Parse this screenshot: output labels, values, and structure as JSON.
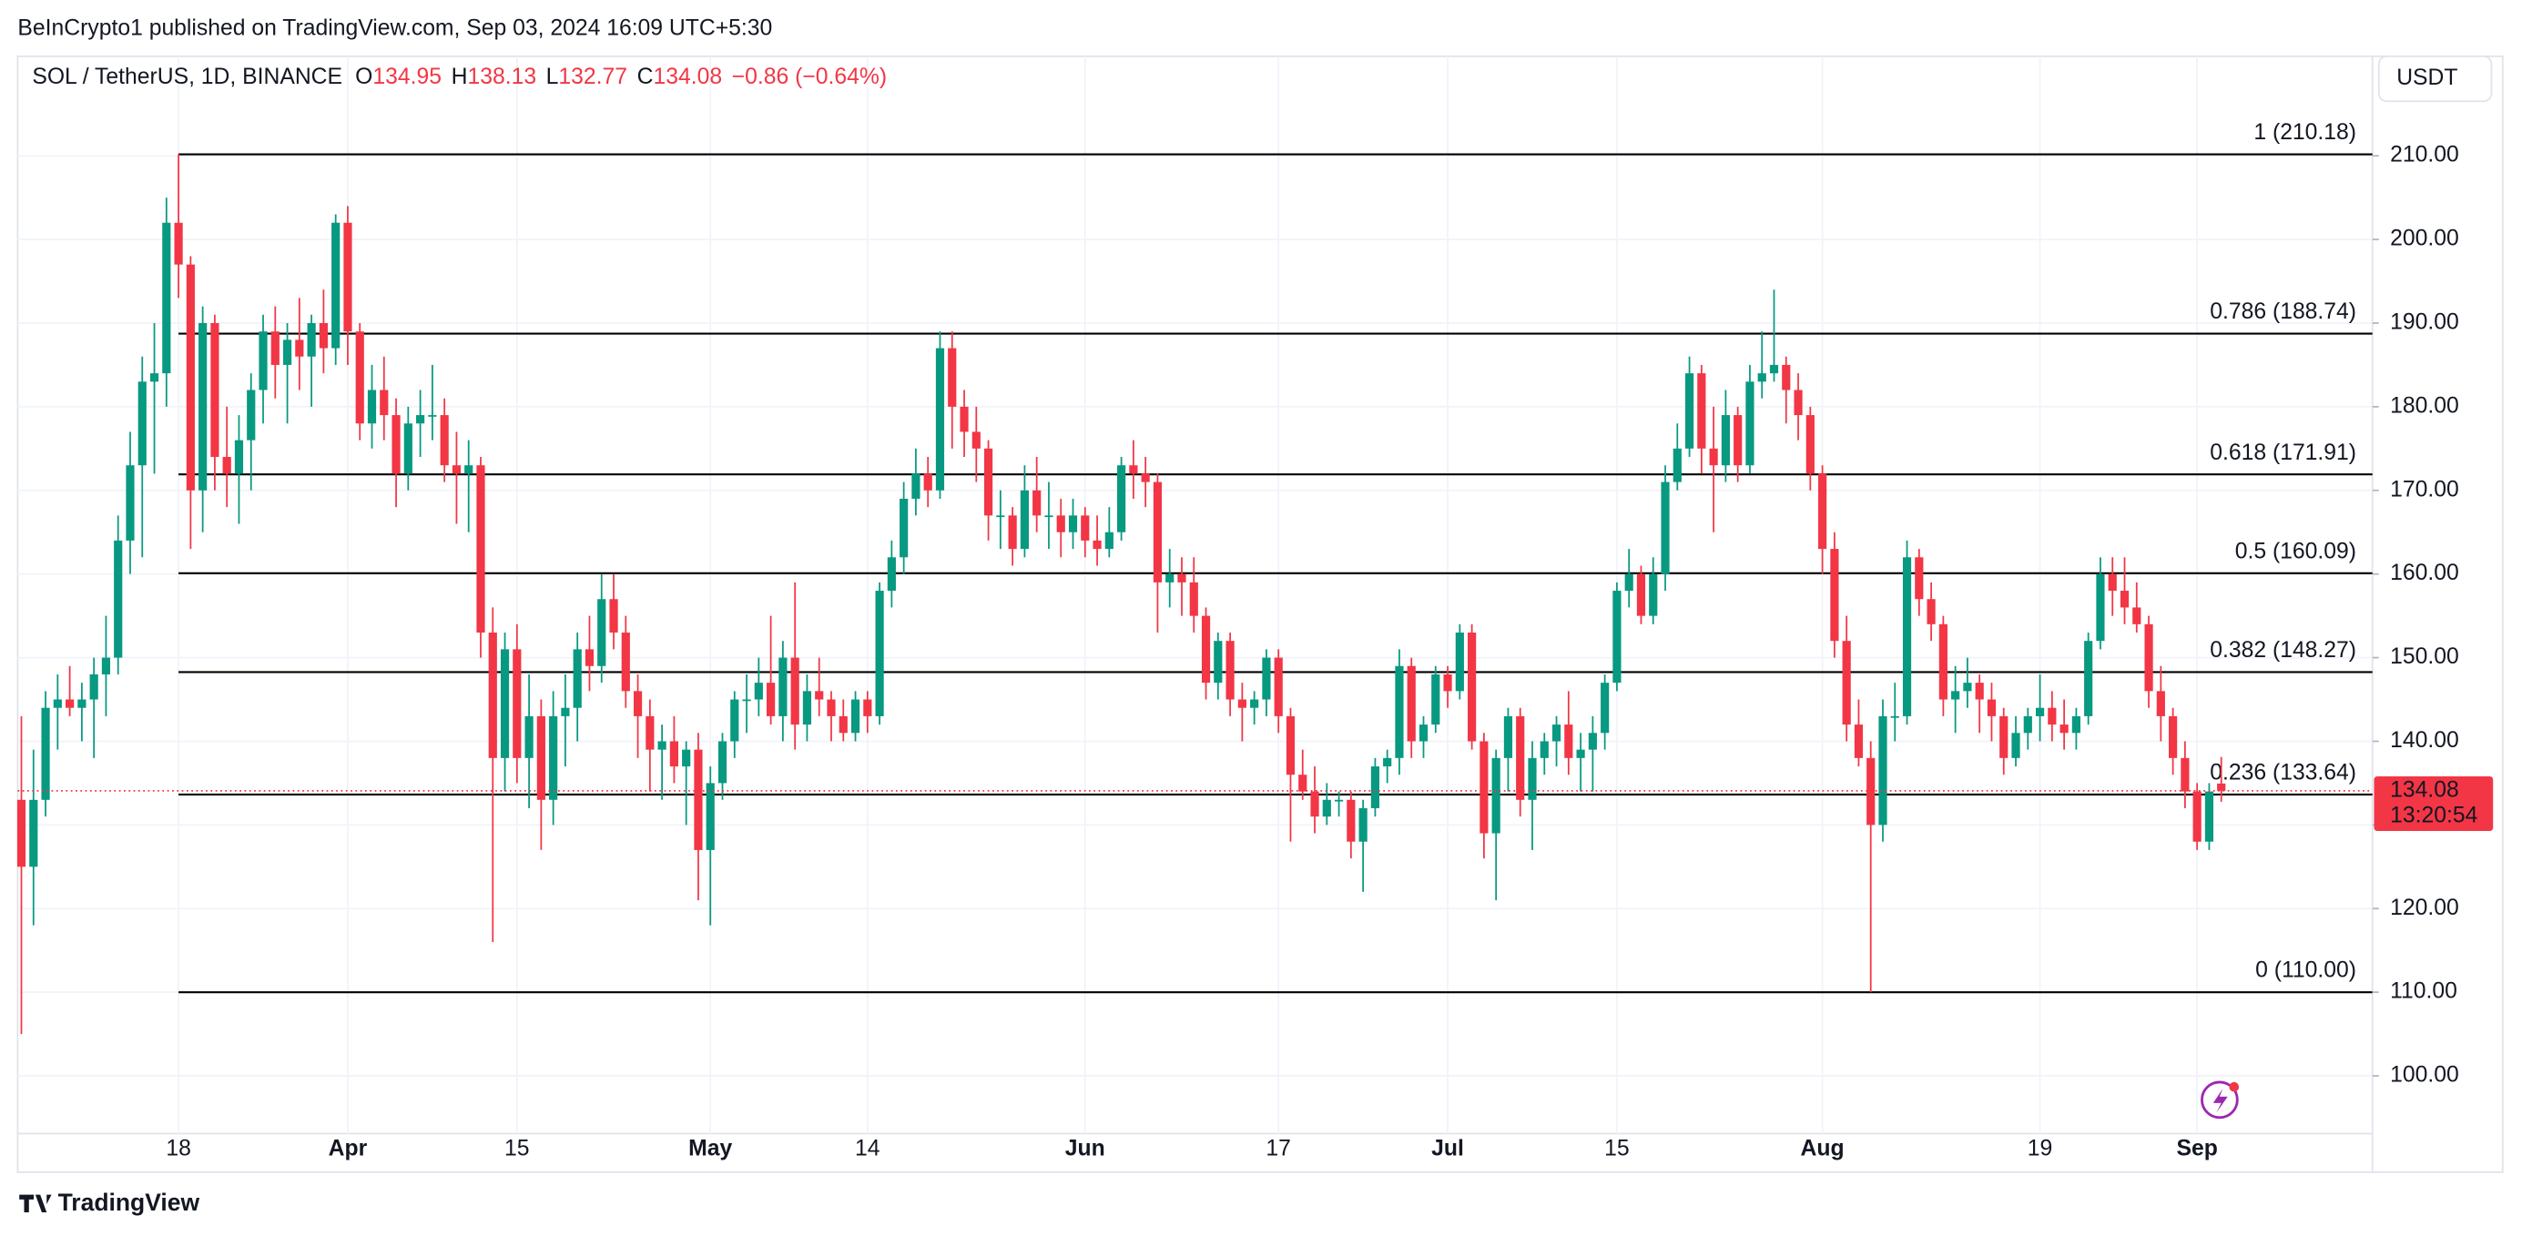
{
  "chart_data": {
    "type": "candlestick",
    "header": "BeInCrypto1 published on TradingView.com, Sep 03, 2024 16:09 UTC+5:30",
    "symbol": "SOL / TetherUS, 1D, BINANCE",
    "ohlc_labels": [
      "O",
      "H",
      "L",
      "C"
    ],
    "change": "−0.86 (−0.64%)",
    "currency": "USDT",
    "countdown": "13:20:54",
    "brand": "TradingView",
    "up_color": "#089981",
    "down_color": "#f23645",
    "fib_color": "#000000",
    "grid": true,
    "ylim": [
      93.1,
      221.9
    ],
    "yticks": [
      {
        "value": 100,
        "label": "100.00"
      },
      {
        "value": 110,
        "label": "110.00"
      },
      {
        "value": 120,
        "label": "120.00"
      },
      {
        "value": 130,
        "label": "130.00"
      },
      {
        "value": 140,
        "label": "140.00"
      },
      {
        "value": 150,
        "label": "150.00"
      },
      {
        "value": 160,
        "label": "160.00"
      },
      {
        "value": 170,
        "label": "170.00"
      },
      {
        "value": 180,
        "label": "180.00"
      },
      {
        "value": 190,
        "label": "190.00"
      },
      {
        "value": 200,
        "label": "200.00"
      },
      {
        "value": 210,
        "label": "210.00"
      }
    ],
    "fib_levels": [
      {
        "value": 210.18,
        "label": "1 (210.18)"
      },
      {
        "value": 188.74,
        "label": "0.786 (188.74)"
      },
      {
        "value": 171.91,
        "label": "0.618 (171.91)"
      },
      {
        "value": 160.09,
        "label": "0.5 (160.09)"
      },
      {
        "value": 148.27,
        "label": "0.382 (148.27)"
      },
      {
        "value": 133.64,
        "label": "0.236 (133.64)"
      },
      {
        "value": 110.0,
        "label": "0 (110.00)"
      }
    ],
    "categories": [
      null,
      null,
      null,
      null,
      null,
      null,
      null,
      null,
      null,
      null,
      null,
      null,
      null,
      "18",
      null,
      null,
      null,
      null,
      null,
      null,
      null,
      null,
      null,
      null,
      null,
      null,
      null,
      "Apr",
      null,
      null,
      null,
      null,
      null,
      null,
      null,
      null,
      null,
      null,
      null,
      null,
      null,
      "15",
      null,
      null,
      null,
      null,
      null,
      null,
      null,
      null,
      null,
      null,
      null,
      null,
      null,
      null,
      null,
      "May",
      null,
      null,
      null,
      null,
      null,
      null,
      null,
      null,
      null,
      null,
      null,
      null,
      "14",
      null,
      null,
      null,
      null,
      null,
      null,
      null,
      null,
      null,
      null,
      null,
      null,
      null,
      null,
      null,
      null,
      null,
      "Jun",
      null,
      null,
      null,
      null,
      null,
      null,
      null,
      null,
      null,
      null,
      null,
      null,
      null,
      null,
      null,
      "17",
      null,
      null,
      null,
      null,
      null,
      null,
      null,
      null,
      null,
      null,
      null,
      null,
      null,
      "Jul",
      null,
      null,
      null,
      null,
      null,
      null,
      null,
      null,
      null,
      null,
      null,
      null,
      null,
      "15",
      null,
      null,
      null,
      null,
      null,
      null,
      null,
      null,
      null,
      null,
      null,
      null,
      null,
      null,
      null,
      null,
      "Aug",
      null,
      null,
      null,
      null,
      null,
      null,
      null,
      null,
      null,
      null,
      null,
      null,
      null,
      null,
      null,
      null,
      null,
      "19",
      null,
      null,
      null,
      null,
      null,
      null,
      null,
      null,
      null,
      null,
      null,
      null,
      "Sep",
      null,
      null
    ],
    "candles": [
      [
        133,
        143,
        105,
        125
      ],
      [
        125,
        139,
        118,
        133
      ],
      [
        133,
        146,
        131,
        144
      ],
      [
        144,
        148,
        139,
        145
      ],
      [
        145,
        149,
        143,
        144
      ],
      [
        144,
        147,
        140,
        145
      ],
      [
        145,
        150,
        138,
        148
      ],
      [
        148,
        155,
        143,
        150
      ],
      [
        150,
        167,
        148,
        164
      ],
      [
        164,
        177,
        160,
        173
      ],
      [
        173,
        186,
        162,
        183
      ],
      [
        183,
        190,
        172,
        184
      ],
      [
        184,
        205,
        180,
        202
      ],
      [
        202,
        210.18,
        193,
        197
      ],
      [
        197,
        198,
        163,
        170
      ],
      [
        170,
        192,
        165,
        190
      ],
      [
        190,
        191,
        170,
        174
      ],
      [
        174,
        180,
        168,
        172
      ],
      [
        172,
        179,
        166,
        176
      ],
      [
        176,
        184,
        170,
        182
      ],
      [
        182,
        191,
        178,
        189
      ],
      [
        189,
        192,
        181,
        185
      ],
      [
        185,
        190,
        178,
        188
      ],
      [
        188,
        193,
        182,
        186
      ],
      [
        186,
        191,
        180,
        190
      ],
      [
        190,
        194,
        184,
        187
      ],
      [
        187,
        203,
        185,
        202
      ],
      [
        202,
        204,
        185,
        189
      ],
      [
        189,
        190,
        176,
        178
      ],
      [
        178,
        185,
        175,
        182
      ],
      [
        182,
        186,
        176,
        179
      ],
      [
        179,
        181,
        168,
        172
      ],
      [
        172,
        180,
        170,
        178
      ],
      [
        178,
        182,
        174,
        179
      ],
      [
        179,
        185,
        176,
        179
      ],
      [
        179,
        181,
        171,
        173
      ],
      [
        173,
        177,
        166,
        172
      ],
      [
        172,
        176,
        165,
        173
      ],
      [
        173,
        174,
        150,
        153
      ],
      [
        153,
        156,
        116,
        138
      ],
      [
        138,
        153,
        134,
        151
      ],
      [
        151,
        154,
        135,
        138
      ],
      [
        138,
        148,
        132,
        143
      ],
      [
        143,
        145,
        127,
        133
      ],
      [
        133,
        146,
        130,
        143
      ],
      [
        143,
        148,
        137,
        144
      ],
      [
        144,
        153,
        140,
        151
      ],
      [
        151,
        155,
        146,
        149
      ],
      [
        149,
        160,
        147,
        157
      ],
      [
        157,
        160,
        151,
        153
      ],
      [
        153,
        155,
        144,
        146
      ],
      [
        146,
        148,
        138,
        143
      ],
      [
        143,
        145,
        134,
        139
      ],
      [
        139,
        142,
        133,
        140
      ],
      [
        140,
        143,
        135,
        137
      ],
      [
        137,
        140,
        130,
        139
      ],
      [
        139,
        141,
        121,
        127
      ],
      [
        127,
        137,
        118,
        135
      ],
      [
        135,
        141,
        133,
        140
      ],
      [
        140,
        146,
        138,
        145
      ],
      [
        145,
        148,
        141,
        145
      ],
      [
        145,
        150,
        143,
        147
      ],
      [
        147,
        155,
        142,
        143
      ],
      [
        143,
        152,
        140,
        150
      ],
      [
        150,
        159,
        139,
        142
      ],
      [
        142,
        148,
        140,
        146
      ],
      [
        146,
        150,
        143,
        145
      ],
      [
        145,
        146,
        140,
        143
      ],
      [
        143,
        145,
        140,
        141
      ],
      [
        141,
        146,
        140,
        145
      ],
      [
        145,
        146,
        141,
        143
      ],
      [
        143,
        159,
        142,
        158
      ],
      [
        158,
        164,
        156,
        162
      ],
      [
        162,
        171,
        160,
        169
      ],
      [
        169,
        175,
        167,
        172
      ],
      [
        172,
        174,
        168,
        170
      ],
      [
        170,
        189,
        169,
        187
      ],
      [
        187,
        189,
        175,
        180
      ],
      [
        180,
        182,
        174,
        177
      ],
      [
        177,
        180,
        171,
        175
      ],
      [
        175,
        176,
        164,
        167
      ],
      [
        167,
        170,
        163,
        167
      ],
      [
        167,
        168,
        161,
        163
      ],
      [
        163,
        173,
        162,
        170
      ],
      [
        170,
        174,
        165,
        167
      ],
      [
        167,
        171,
        163,
        167
      ],
      [
        167,
        169,
        162,
        165
      ],
      [
        165,
        169,
        163,
        167
      ],
      [
        167,
        168,
        162,
        164
      ],
      [
        164,
        167,
        161,
        163
      ],
      [
        163,
        168,
        162,
        165
      ],
      [
        165,
        174,
        164,
        173
      ],
      [
        173,
        176,
        169,
        172
      ],
      [
        172,
        174,
        168,
        171
      ],
      [
        171,
        172,
        153,
        159
      ],
      [
        159,
        163,
        156,
        160
      ],
      [
        160,
        162,
        155,
        159
      ],
      [
        159,
        162,
        153,
        155
      ],
      [
        155,
        156,
        145,
        147
      ],
      [
        147,
        153,
        145,
        152
      ],
      [
        152,
        153,
        143,
        145
      ],
      [
        145,
        147,
        140,
        144
      ],
      [
        144,
        146,
        142,
        145
      ],
      [
        145,
        151,
        143,
        150
      ],
      [
        150,
        151,
        141,
        143
      ],
      [
        143,
        144,
        128,
        136
      ],
      [
        136,
        139,
        133,
        134
      ],
      [
        134,
        137,
        129,
        131
      ],
      [
        131,
        135,
        130,
        133
      ],
      [
        133,
        134,
        131,
        133
      ],
      [
        133,
        134,
        126,
        128
      ],
      [
        128,
        133,
        122,
        132
      ],
      [
        132,
        138,
        131,
        137
      ],
      [
        137,
        139,
        135,
        138
      ],
      [
        138,
        151,
        136,
        149
      ],
      [
        149,
        150,
        138,
        140
      ],
      [
        140,
        143,
        138,
        142
      ],
      [
        142,
        149,
        141,
        148
      ],
      [
        148,
        149,
        144,
        146
      ],
      [
        146,
        154,
        145,
        153
      ],
      [
        153,
        154,
        139,
        140
      ],
      [
        140,
        141,
        126,
        129
      ],
      [
        129,
        139,
        121,
        138
      ],
      [
        138,
        144,
        134,
        143
      ],
      [
        143,
        144,
        131,
        133
      ],
      [
        133,
        140,
        127,
        138
      ],
      [
        138,
        141,
        136,
        140
      ],
      [
        140,
        143,
        137,
        142
      ],
      [
        142,
        146,
        136,
        138
      ],
      [
        138,
        141,
        134,
        139
      ],
      [
        139,
        143,
        134,
        141
      ],
      [
        141,
        148,
        139,
        147
      ],
      [
        147,
        159,
        146,
        158
      ],
      [
        158,
        163,
        156,
        160
      ],
      [
        160,
        161,
        154,
        155
      ],
      [
        155,
        162,
        154,
        160
      ],
      [
        160,
        173,
        158,
        171
      ],
      [
        171,
        178,
        170,
        175
      ],
      [
        175,
        186,
        174,
        184
      ],
      [
        184,
        185,
        172,
        175
      ],
      [
        175,
        180,
        165,
        173
      ],
      [
        173,
        182,
        171,
        179
      ],
      [
        179,
        180,
        171,
        173
      ],
      [
        173,
        185,
        172,
        183
      ],
      [
        183,
        189,
        181,
        184
      ],
      [
        184,
        194,
        183,
        185
      ],
      [
        185,
        186,
        178,
        182
      ],
      [
        182,
        184,
        176,
        179
      ],
      [
        179,
        180,
        170,
        172
      ],
      [
        172,
        173,
        160,
        163
      ],
      [
        163,
        165,
        150,
        152
      ],
      [
        152,
        155,
        140,
        142
      ],
      [
        142,
        145,
        137,
        138
      ],
      [
        138,
        140,
        110,
        130
      ],
      [
        130,
        145,
        128,
        143
      ],
      [
        143,
        147,
        140,
        143
      ],
      [
        143,
        164,
        142,
        162
      ],
      [
        162,
        163,
        155,
        157
      ],
      [
        157,
        159,
        152,
        154
      ],
      [
        154,
        155,
        143,
        145
      ],
      [
        145,
        149,
        141,
        146
      ],
      [
        146,
        150,
        144,
        147
      ],
      [
        147,
        148,
        141,
        145
      ],
      [
        145,
        147,
        140,
        143
      ],
      [
        143,
        144,
        136,
        138
      ],
      [
        138,
        143,
        137,
        141
      ],
      [
        141,
        144,
        139,
        143
      ],
      [
        143,
        148,
        140,
        144
      ],
      [
        144,
        146,
        140,
        142
      ],
      [
        142,
        145,
        139,
        141
      ],
      [
        141,
        144,
        139,
        143
      ],
      [
        143,
        153,
        142,
        152
      ],
      [
        152,
        162,
        151,
        160
      ],
      [
        160,
        162,
        155,
        158
      ],
      [
        158,
        162,
        154,
        156
      ],
      [
        156,
        159,
        153,
        154
      ],
      [
        154,
        155,
        144,
        146
      ],
      [
        146,
        149,
        140,
        143
      ],
      [
        143,
        144,
        136,
        138
      ],
      [
        138,
        140,
        132,
        134
      ],
      [
        134,
        135,
        127,
        128
      ],
      [
        128,
        135,
        127,
        134
      ],
      [
        134.95,
        138.13,
        132.77,
        134.08
      ]
    ]
  }
}
